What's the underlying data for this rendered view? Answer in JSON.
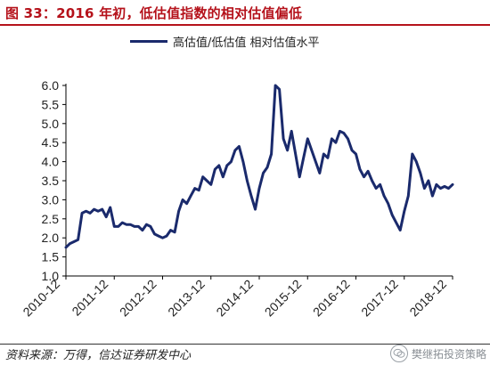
{
  "figure_title": "图 33：2016 年初，低估值指数的相对估值偏低",
  "source": "资料来源：万得，信达证券研发中心",
  "watermark": "樊继拓投资策略",
  "colors": {
    "series": "#1a2a6c",
    "title": "#b5121b",
    "axis": "#000000"
  },
  "chart_data": {
    "type": "line",
    "title": "",
    "xlabel": "",
    "ylabel": "",
    "ylim": [
      1.0,
      6.0
    ],
    "yticks": [
      "1.0",
      "1.5",
      "2.0",
      "2.5",
      "3.0",
      "3.5",
      "4.0",
      "4.5",
      "5.0",
      "5.5",
      "6.0"
    ],
    "xticks": [
      "2010-12",
      "2011-12",
      "2012-12",
      "2013-12",
      "2014-12",
      "2015-12",
      "2016-12",
      "2017-12",
      "2018-12"
    ],
    "xlim": [
      "2010-12",
      "2018-12"
    ],
    "legend_position": "top-center",
    "grid": false,
    "series": [
      {
        "name": "高估值/低估值 相对估值水平",
        "points": [
          [
            "2010-12",
            1.75
          ],
          [
            "2011-01",
            1.85
          ],
          [
            "2011-02",
            1.9
          ],
          [
            "2011-03",
            1.95
          ],
          [
            "2011-04",
            2.65
          ],
          [
            "2011-05",
            2.7
          ],
          [
            "2011-06",
            2.65
          ],
          [
            "2011-07",
            2.75
          ],
          [
            "2011-08",
            2.7
          ],
          [
            "2011-09",
            2.75
          ],
          [
            "2011-10",
            2.55
          ],
          [
            "2011-11",
            2.8
          ],
          [
            "2011-12",
            2.3
          ],
          [
            "2012-01",
            2.3
          ],
          [
            "2012-02",
            2.4
          ],
          [
            "2012-03",
            2.35
          ],
          [
            "2012-04",
            2.35
          ],
          [
            "2012-05",
            2.3
          ],
          [
            "2012-06",
            2.3
          ],
          [
            "2012-07",
            2.2
          ],
          [
            "2012-08",
            2.35
          ],
          [
            "2012-09",
            2.3
          ],
          [
            "2012-10",
            2.1
          ],
          [
            "2012-11",
            2.05
          ],
          [
            "2012-12",
            2.0
          ],
          [
            "2013-01",
            2.05
          ],
          [
            "2013-02",
            2.2
          ],
          [
            "2013-03",
            2.15
          ],
          [
            "2013-04",
            2.7
          ],
          [
            "2013-05",
            3.0
          ],
          [
            "2013-06",
            2.9
          ],
          [
            "2013-07",
            3.1
          ],
          [
            "2013-08",
            3.3
          ],
          [
            "2013-09",
            3.25
          ],
          [
            "2013-10",
            3.6
          ],
          [
            "2013-11",
            3.5
          ],
          [
            "2013-12",
            3.4
          ],
          [
            "2014-01",
            3.8
          ],
          [
            "2014-02",
            3.9
          ],
          [
            "2014-03",
            3.6
          ],
          [
            "2014-04",
            3.9
          ],
          [
            "2014-05",
            4.0
          ],
          [
            "2014-06",
            4.3
          ],
          [
            "2014-07",
            4.4
          ],
          [
            "2014-08",
            4.0
          ],
          [
            "2014-09",
            3.5
          ],
          [
            "2014-10",
            3.1
          ],
          [
            "2014-11",
            2.75
          ],
          [
            "2014-12",
            3.3
          ],
          [
            "2015-01",
            3.7
          ],
          [
            "2015-02",
            3.85
          ],
          [
            "2015-03",
            4.2
          ],
          [
            "2015-04",
            6.0
          ],
          [
            "2015-05",
            5.9
          ],
          [
            "2015-06",
            4.6
          ],
          [
            "2015-07",
            4.3
          ],
          [
            "2015-08",
            4.8
          ],
          [
            "2015-09",
            4.2
          ],
          [
            "2015-10",
            3.6
          ],
          [
            "2015-11",
            4.1
          ],
          [
            "2015-12",
            4.6
          ],
          [
            "2016-01",
            4.3
          ],
          [
            "2016-02",
            4.0
          ],
          [
            "2016-03",
            3.7
          ],
          [
            "2016-04",
            4.2
          ],
          [
            "2016-05",
            4.1
          ],
          [
            "2016-06",
            4.6
          ],
          [
            "2016-07",
            4.5
          ],
          [
            "2016-08",
            4.8
          ],
          [
            "2016-09",
            4.75
          ],
          [
            "2016-10",
            4.6
          ],
          [
            "2016-11",
            4.3
          ],
          [
            "2016-12",
            4.2
          ],
          [
            "2017-01",
            3.8
          ],
          [
            "2017-02",
            3.6
          ],
          [
            "2017-03",
            3.75
          ],
          [
            "2017-04",
            3.5
          ],
          [
            "2017-05",
            3.3
          ],
          [
            "2017-06",
            3.4
          ],
          [
            "2017-07",
            3.1
          ],
          [
            "2017-08",
            2.9
          ],
          [
            "2017-09",
            2.6
          ],
          [
            "2017-10",
            2.4
          ],
          [
            "2017-11",
            2.2
          ],
          [
            "2017-12",
            2.7
          ],
          [
            "2018-01",
            3.1
          ],
          [
            "2018-02",
            4.2
          ],
          [
            "2018-03",
            4.0
          ],
          [
            "2018-04",
            3.7
          ],
          [
            "2018-05",
            3.3
          ],
          [
            "2018-06",
            3.5
          ],
          [
            "2018-07",
            3.1
          ],
          [
            "2018-08",
            3.4
          ],
          [
            "2018-09",
            3.3
          ],
          [
            "2018-10",
            3.35
          ],
          [
            "2018-11",
            3.3
          ],
          [
            "2018-12",
            3.4
          ]
        ]
      }
    ]
  }
}
